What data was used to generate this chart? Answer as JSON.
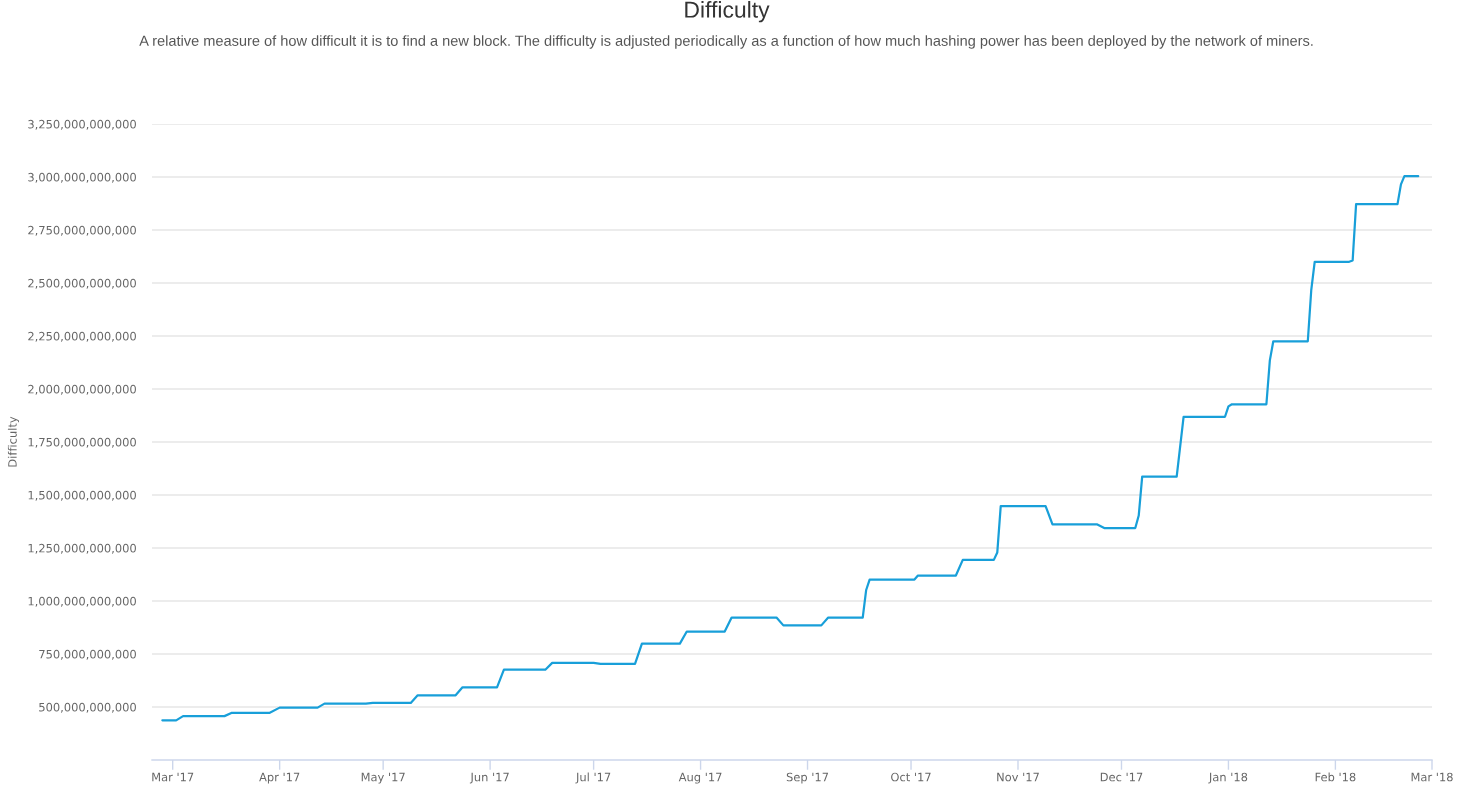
{
  "chart_data": {
    "type": "line",
    "title": "Difficulty",
    "subtitle": "A relative measure of how difficult it is to find a new block. The difficulty is adjusted periodically as a function of how much hashing power has been deployed by the network of miners.",
    "ylabel": "Difficulty",
    "x": [
      "2017-02-26",
      "2017-03-02",
      "2017-03-04",
      "2017-03-16",
      "2017-03-18",
      "2017-03-29",
      "2017-04-01",
      "2017-04-12",
      "2017-04-14",
      "2017-04-26",
      "2017-04-28",
      "2017-05-09",
      "2017-05-11",
      "2017-05-22",
      "2017-05-24",
      "2017-06-03",
      "2017-06-05",
      "2017-06-17",
      "2017-06-19",
      "2017-07-01",
      "2017-07-03",
      "2017-07-13",
      "2017-07-15",
      "2017-07-26",
      "2017-07-28",
      "2017-08-08",
      "2017-08-10",
      "2017-08-23",
      "2017-08-25",
      "2017-09-05",
      "2017-09-07",
      "2017-09-17",
      "2017-09-18",
      "2017-09-19",
      "2017-10-02",
      "2017-10-03",
      "2017-10-14",
      "2017-10-16",
      "2017-10-25",
      "2017-10-26",
      "2017-10-27",
      "2017-11-09",
      "2017-11-11",
      "2017-11-24",
      "2017-11-26",
      "2017-12-05",
      "2017-12-06",
      "2017-12-07",
      "2017-12-17",
      "2017-12-19",
      "2017-12-31",
      "2018-01-01",
      "2018-01-02",
      "2018-01-12",
      "2018-01-13",
      "2018-01-14",
      "2018-01-24",
      "2018-01-25",
      "2018-01-26",
      "2018-02-05",
      "2018-02-06",
      "2018-02-07",
      "2018-02-19",
      "2018-02-20",
      "2018-02-21",
      "2018-02-25"
    ],
    "series": [
      {
        "color": "#189fd9",
        "values": [
          437000000000,
          437000000000,
          457000000000,
          457000000000,
          472000000000,
          472000000000,
          497000000000,
          497000000000,
          516000000000,
          516000000000,
          519000000000,
          519000000000,
          555000000000,
          555000000000,
          593000000000,
          593000000000,
          676000000000,
          676000000000,
          708000000000,
          708000000000,
          703000000000,
          703000000000,
          799000000000,
          799000000000,
          856000000000,
          856000000000,
          922000000000,
          922000000000,
          885000000000,
          885000000000,
          922000000000,
          922000000000,
          1052000000000,
          1101000000000,
          1101000000000,
          1120000000000,
          1120000000000,
          1194000000000,
          1194000000000,
          1229000000000,
          1448000000000,
          1448000000000,
          1361000000000,
          1361000000000,
          1344000000000,
          1344000000000,
          1403000000000,
          1587000000000,
          1587000000000,
          1869000000000,
          1869000000000,
          1918000000000,
          1928000000000,
          1928000000000,
          2135000000000,
          2225000000000,
          2225000000000,
          2466000000000,
          2600000000000,
          2600000000000,
          2606000000000,
          2872000000000,
          2872000000000,
          2965000000000,
          3004000000000,
          3004000000000
        ]
      }
    ],
    "xlim": [
      "2017-02-23",
      "2018-03-01"
    ],
    "xticks": [
      {
        "value": "2017-03-01",
        "label": "Mar '17"
      },
      {
        "value": "2017-04-01",
        "label": "Apr '17"
      },
      {
        "value": "2017-05-01",
        "label": "May '17"
      },
      {
        "value": "2017-06-01",
        "label": "Jun '17"
      },
      {
        "value": "2017-07-01",
        "label": "Jul '17"
      },
      {
        "value": "2017-08-01",
        "label": "Aug '17"
      },
      {
        "value": "2017-09-01",
        "label": "Sep '17"
      },
      {
        "value": "2017-10-01",
        "label": "Oct '17"
      },
      {
        "value": "2017-11-01",
        "label": "Nov '17"
      },
      {
        "value": "2017-12-01",
        "label": "Dec '17"
      },
      {
        "value": "2018-01-01",
        "label": "Jan '18"
      },
      {
        "value": "2018-02-01",
        "label": "Feb '18"
      },
      {
        "value": "2018-03-01",
        "label": "Mar '18"
      }
    ],
    "ylim": [
      250000000000,
      3250000000000
    ],
    "yticks": [
      {
        "value": 500000000000,
        "label": "500,000,000,000"
      },
      {
        "value": 750000000000,
        "label": "750,000,000,000"
      },
      {
        "value": 1000000000000,
        "label": "1,000,000,000,000"
      },
      {
        "value": 1250000000000,
        "label": "1,250,000,000,000"
      },
      {
        "value": 1500000000000,
        "label": "1,500,000,000,000"
      },
      {
        "value": 1750000000000,
        "label": "1,750,000,000,000"
      },
      {
        "value": 2000000000000,
        "label": "2,000,000,000,000"
      },
      {
        "value": 2250000000000,
        "label": "2,250,000,000,000"
      },
      {
        "value": 2500000000000,
        "label": "2,500,000,000,000"
      },
      {
        "value": 2750000000000,
        "label": "2,750,000,000,000"
      },
      {
        "value": 3000000000000,
        "label": "3,000,000,000,000"
      },
      {
        "value": 3250000000000,
        "label": "3,250,000,000,000"
      }
    ],
    "grid": "y",
    "line_style": "solid"
  }
}
